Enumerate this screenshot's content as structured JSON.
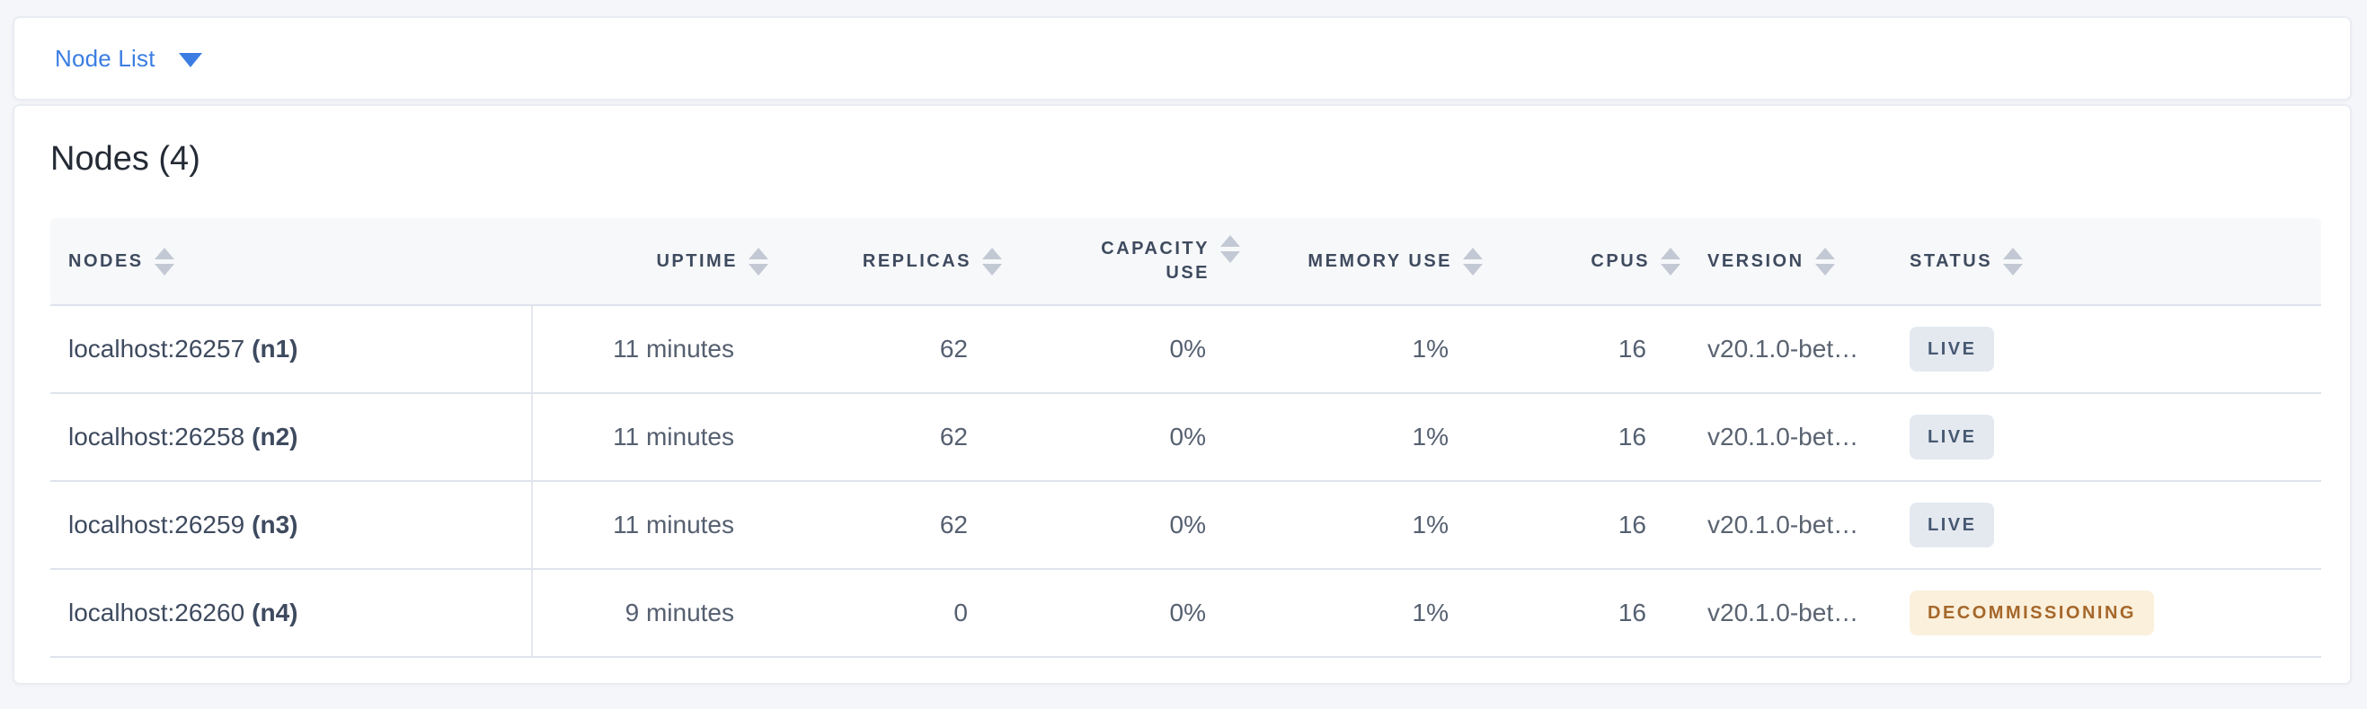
{
  "colors": {
    "page-bg": "#f4f6f9",
    "accent": "#3b7de2",
    "badge-live-bg": "#e4e9f0",
    "badge-live-text": "#475872",
    "badge-decom-bg": "#faf0dc",
    "badge-decom-text": "#a5672a"
  },
  "selector_bar": {
    "label": "Node List",
    "caret_icon": "caret-down-icon"
  },
  "main": {
    "title": "Nodes (4)",
    "table": {
      "columns": [
        {
          "label": "NODES"
        },
        {
          "label": "UPTIME"
        },
        {
          "label": "REPLICAS"
        },
        {
          "label": "CAPACITY USE"
        },
        {
          "label": "MEMORY USE"
        },
        {
          "label": "CPUS"
        },
        {
          "label": "VERSION"
        },
        {
          "label": "STATUS"
        }
      ],
      "rows": [
        {
          "node": "localhost:26257",
          "node_id": "(n1)",
          "uptime": "11 minutes",
          "replicas": "62",
          "capacity_use": "0%",
          "memory_use": "1%",
          "cpus": "16",
          "version": "v20.1.0-bet…",
          "status": "LIVE"
        },
        {
          "node": "localhost:26258",
          "node_id": "(n2)",
          "uptime": "11 minutes",
          "replicas": "62",
          "capacity_use": "0%",
          "memory_use": "1%",
          "cpus": "16",
          "version": "v20.1.0-bet…",
          "status": "LIVE"
        },
        {
          "node": "localhost:26259",
          "node_id": "(n3)",
          "uptime": "11 minutes",
          "replicas": "62",
          "capacity_use": "0%",
          "memory_use": "1%",
          "cpus": "16",
          "version": "v20.1.0-bet…",
          "status": "LIVE"
        },
        {
          "node": "localhost:26260",
          "node_id": "(n4)",
          "uptime": "9 minutes",
          "replicas": "0",
          "capacity_use": "0%",
          "memory_use": "1%",
          "cpus": "16",
          "version": "v20.1.0-bet…",
          "status": "DECOMMISSIONING"
        }
      ]
    }
  }
}
